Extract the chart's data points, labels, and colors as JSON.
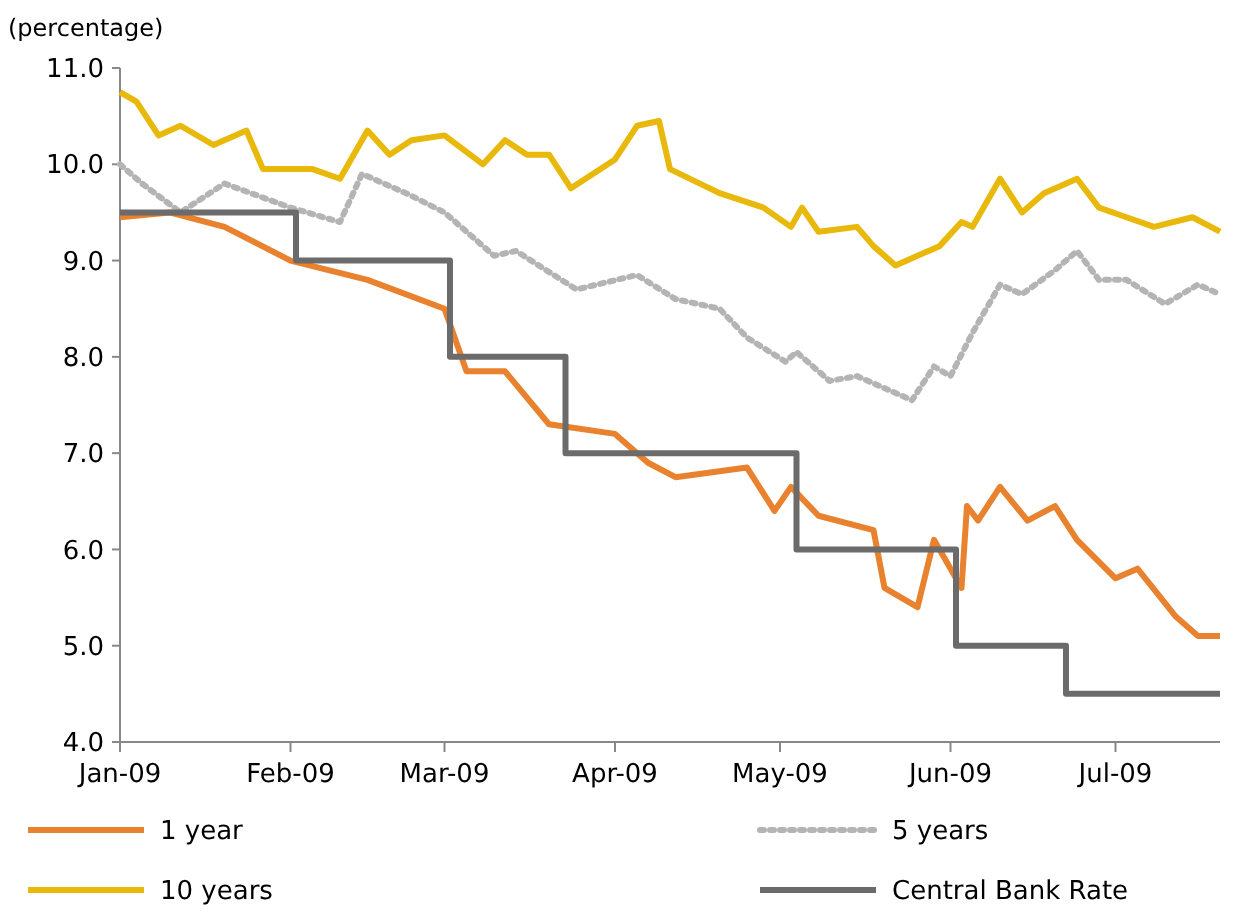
{
  "chart_data": {
    "type": "line",
    "ylabel": "(percentage)",
    "xlim": [
      "2009-01-01",
      "2009-07-20"
    ],
    "xticks": [
      {
        "value": "2009-01-01",
        "label": "Jan-09"
      },
      {
        "value": "2009-02-01",
        "label": "Feb-09"
      },
      {
        "value": "2009-03-01",
        "label": "Mar-09"
      },
      {
        "value": "2009-04-01",
        "label": "Apr-09"
      },
      {
        "value": "2009-05-01",
        "label": "May-09"
      },
      {
        "value": "2009-06-01",
        "label": "Jun-09"
      },
      {
        "value": "2009-07-01",
        "label": "Jul-09"
      }
    ],
    "ylim": [
      4,
      11
    ],
    "yticks": [
      {
        "value": 4,
        "label": "4.0"
      },
      {
        "value": 5,
        "label": "5.0"
      },
      {
        "value": 6,
        "label": "6.0"
      },
      {
        "value": 7,
        "label": "7.0"
      },
      {
        "value": 8,
        "label": "8.0"
      },
      {
        "value": 9,
        "label": "9.0"
      },
      {
        "value": 10,
        "label": "10.0"
      },
      {
        "value": 11,
        "label": "11.0"
      }
    ],
    "grid": false,
    "legend": "bottom",
    "marker": "none",
    "series": [
      {
        "name": "1 year",
        "color": "#e8822e",
        "line_style": "solid",
        "x": [
          "2009-01-01",
          "2009-01-10",
          "2009-01-20",
          "2009-02-01",
          "2009-02-15",
          "2009-03-01",
          "2009-03-05",
          "2009-03-12",
          "2009-03-20",
          "2009-04-01",
          "2009-04-07",
          "2009-04-12",
          "2009-04-25",
          "2009-04-30",
          "2009-05-03",
          "2009-05-08",
          "2009-05-18",
          "2009-05-20",
          "2009-05-26",
          "2009-05-29",
          "2009-06-03",
          "2009-06-04",
          "2009-06-06",
          "2009-06-10",
          "2009-06-15",
          "2009-06-20",
          "2009-06-24",
          "2009-07-01",
          "2009-07-05",
          "2009-07-12",
          "2009-07-16",
          "2009-07-20"
        ],
        "values": [
          9.45,
          9.5,
          9.35,
          9.0,
          8.8,
          8.5,
          7.85,
          7.85,
          7.3,
          7.2,
          6.9,
          6.75,
          6.85,
          6.4,
          6.65,
          6.35,
          6.2,
          5.6,
          5.4,
          6.1,
          5.6,
          6.45,
          6.3,
          6.65,
          6.3,
          6.45,
          6.1,
          5.7,
          5.8,
          5.3,
          5.1,
          5.1
        ]
      },
      {
        "name": "5 years",
        "color": "#b4b4b4",
        "line_style": "dotted",
        "x": [
          "2009-01-01",
          "2009-01-05",
          "2009-01-12",
          "2009-01-20",
          "2009-02-01",
          "2009-02-10",
          "2009-02-14",
          "2009-02-22",
          "2009-03-01",
          "2009-03-10",
          "2009-03-14",
          "2009-03-25",
          "2009-04-05",
          "2009-04-12",
          "2009-04-20",
          "2009-04-25",
          "2009-05-02",
          "2009-05-04",
          "2009-05-10",
          "2009-05-15",
          "2009-05-25",
          "2009-05-29",
          "2009-06-01",
          "2009-06-05",
          "2009-06-10",
          "2009-06-14",
          "2009-06-20",
          "2009-06-24",
          "2009-06-28",
          "2009-07-03",
          "2009-07-10",
          "2009-07-16",
          "2009-07-20"
        ],
        "values": [
          10.0,
          9.8,
          9.5,
          9.8,
          9.55,
          9.4,
          9.9,
          9.7,
          9.5,
          9.05,
          9.1,
          8.7,
          8.85,
          8.6,
          8.5,
          8.2,
          7.95,
          8.05,
          7.75,
          7.8,
          7.55,
          7.9,
          7.8,
          8.25,
          8.75,
          8.65,
          8.9,
          9.1,
          8.8,
          8.8,
          8.55,
          8.75,
          8.65
        ]
      },
      {
        "name": "10 years",
        "color": "#e8b80a",
        "line_style": "solid",
        "x": [
          "2009-01-01",
          "2009-01-04",
          "2009-01-08",
          "2009-01-12",
          "2009-01-18",
          "2009-01-24",
          "2009-01-27",
          "2009-02-05",
          "2009-02-10",
          "2009-02-15",
          "2009-02-19",
          "2009-02-23",
          "2009-03-01",
          "2009-03-08",
          "2009-03-12",
          "2009-03-16",
          "2009-03-20",
          "2009-03-24",
          "2009-04-01",
          "2009-04-05",
          "2009-04-09",
          "2009-04-11",
          "2009-04-20",
          "2009-04-28",
          "2009-05-03",
          "2009-05-05",
          "2009-05-08",
          "2009-05-15",
          "2009-05-18",
          "2009-05-22",
          "2009-05-26",
          "2009-05-30",
          "2009-06-03",
          "2009-06-05",
          "2009-06-10",
          "2009-06-14",
          "2009-06-18",
          "2009-06-24",
          "2009-06-28",
          "2009-07-03",
          "2009-07-08",
          "2009-07-15",
          "2009-07-20"
        ],
        "values": [
          10.75,
          10.65,
          10.3,
          10.4,
          10.2,
          10.35,
          9.95,
          9.95,
          9.85,
          10.35,
          10.1,
          10.25,
          10.3,
          10.0,
          10.25,
          10.1,
          10.1,
          9.75,
          10.05,
          10.4,
          10.45,
          9.95,
          9.7,
          9.55,
          9.35,
          9.55,
          9.3,
          9.35,
          9.15,
          8.95,
          9.05,
          9.15,
          9.4,
          9.35,
          9.85,
          9.5,
          9.7,
          9.85,
          9.55,
          9.45,
          9.35,
          9.45,
          9.3
        ]
      },
      {
        "name": "Central Bank Rate",
        "type": "step",
        "color": "#6b6b6b",
        "line_style": "solid",
        "x": [
          "2009-01-01",
          "2009-02-02",
          "2009-03-02",
          "2009-03-23",
          "2009-05-04",
          "2009-06-02",
          "2009-06-22",
          "2009-07-20"
        ],
        "values": [
          9.5,
          9.0,
          8.0,
          7.0,
          6.0,
          5.0,
          4.5,
          4.5
        ]
      }
    ]
  }
}
